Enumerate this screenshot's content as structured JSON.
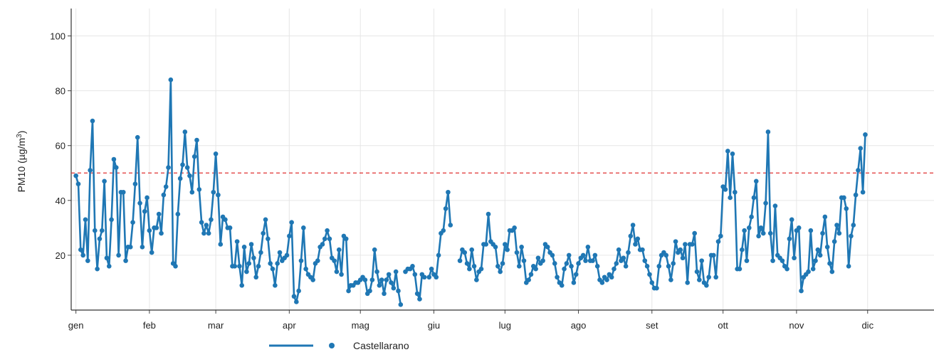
{
  "chart_data": {
    "type": "line",
    "title": "",
    "ylabel": "PM10 (µg/m³)",
    "ylabel_main": "PM10 (",
    "ylabel_mu": "µg/m",
    "ylabel_sup": "3",
    "ylabel_close": ")",
    "ylim": [
      0,
      110
    ],
    "yticks": [
      20,
      40,
      60,
      80,
      100
    ],
    "grid": true,
    "limit_line": {
      "value": 50,
      "color": "#e03030",
      "style": "dashed"
    },
    "months": [
      "gen",
      "feb",
      "mar",
      "apr",
      "mag",
      "giu",
      "lug",
      "ago",
      "set",
      "ott",
      "nov",
      "dic"
    ],
    "month_start_days": [
      1,
      32,
      60,
      91,
      121,
      152,
      182,
      213,
      244,
      274,
      305,
      335
    ],
    "xlim_days": [
      -1,
      363
    ],
    "legend_position": "bottom-center",
    "series": [
      {
        "name": "Castellarano",
        "color": "#1f77b4",
        "values": [
          49,
          46,
          22,
          20,
          33,
          18,
          51,
          69,
          29,
          15,
          26,
          29,
          47,
          19,
          16,
          33,
          55,
          52,
          20,
          43,
          43,
          18,
          23,
          23,
          32,
          46,
          63,
          39,
          23,
          36,
          41,
          29,
          21,
          30,
          30,
          35,
          28,
          42,
          45,
          52,
          84,
          17,
          16,
          35,
          48,
          53,
          65,
          52,
          49,
          43,
          56,
          62,
          44,
          32,
          28,
          31,
          28,
          33,
          43,
          57,
          42,
          24,
          34,
          33,
          30,
          30,
          16,
          16,
          25,
          16,
          9,
          23,
          14,
          17,
          24,
          19,
          12,
          16,
          21,
          28,
          33,
          26,
          17,
          15,
          9,
          17,
          21,
          18,
          19,
          20,
          27,
          32,
          5,
          3,
          7,
          18,
          30,
          15,
          13,
          12,
          11,
          17,
          18,
          23,
          24,
          26,
          29,
          26,
          19,
          18,
          14,
          22,
          13,
          27,
          26,
          7,
          9,
          9,
          10,
          10,
          11,
          12,
          11,
          6,
          7,
          11,
          22,
          14,
          9,
          11,
          6,
          11,
          13,
          10,
          8,
          14,
          7,
          2,
          null,
          14,
          15,
          15,
          16,
          13,
          6,
          4,
          13,
          12,
          null,
          12,
          15,
          13,
          12,
          20,
          28,
          29,
          37,
          43,
          31,
          null,
          null,
          null,
          18,
          22,
          21,
          17,
          15,
          22,
          16,
          11,
          14,
          15,
          24,
          24,
          35,
          25,
          24,
          23,
          16,
          14,
          17,
          24,
          22,
          29,
          29,
          30,
          21,
          16,
          23,
          18,
          10,
          11,
          13,
          16,
          15,
          19,
          17,
          18,
          24,
          23,
          21,
          20,
          17,
          12,
          10,
          9,
          15,
          17,
          20,
          16,
          10,
          13,
          17,
          19,
          20,
          18,
          23,
          18,
          18,
          20,
          16,
          11,
          10,
          12,
          11,
          13,
          12,
          15,
          17,
          22,
          18,
          19,
          16,
          21,
          27,
          31,
          24,
          26,
          22,
          22,
          18,
          16,
          13,
          10,
          8,
          8,
          16,
          20,
          21,
          20,
          16,
          11,
          17,
          25,
          21,
          22,
          19,
          24,
          10,
          24,
          24,
          28,
          14,
          11,
          18,
          10,
          9,
          12,
          20,
          20,
          12,
          25,
          27,
          45,
          44,
          58,
          41,
          57,
          43,
          15,
          15,
          22,
          29,
          18,
          30,
          34,
          41,
          47,
          27,
          30,
          28,
          39,
          65,
          28,
          18,
          38,
          20,
          19,
          18,
          16,
          15,
          26,
          33,
          19,
          29,
          30,
          7,
          12,
          13,
          14,
          29,
          15,
          18,
          22,
          20,
          28,
          34,
          23,
          17,
          14,
          25,
          31,
          28,
          41,
          41,
          37,
          16,
          27,
          31,
          42,
          51,
          59,
          43,
          64
        ]
      }
    ]
  }
}
